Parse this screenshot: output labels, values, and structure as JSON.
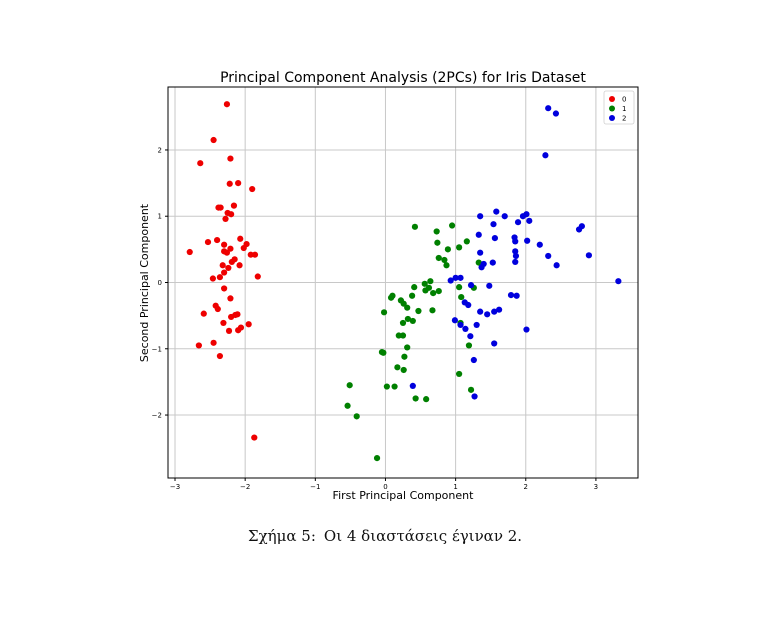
{
  "chart_data": {
    "type": "scatter",
    "title": "Principal Component Analysis (2PCs) for Iris Dataset",
    "xlabel": "First Principal Component",
    "ylabel": "Second Principal Component",
    "xlim": [
      -3.1,
      3.6
    ],
    "ylim": [
      -2.95,
      2.95
    ],
    "xticks": [
      -3,
      -2,
      -1,
      0,
      1,
      2,
      3
    ],
    "xtick_labels": [
      "−3",
      "−2",
      "−1",
      "0",
      "1",
      "2",
      "3"
    ],
    "yticks": [
      -2,
      -1,
      0,
      1,
      2
    ],
    "ytick_labels": [
      "−2",
      "−1",
      "0",
      "1",
      "2"
    ],
    "grid": true,
    "legend": "top-right",
    "series": [
      {
        "name": "0",
        "color": "#ee0000",
        "points": [
          [
            -2.26,
            2.69
          ],
          [
            -2.45,
            2.15
          ],
          [
            -2.21,
            1.87
          ],
          [
            -2.64,
            1.8
          ],
          [
            -2.22,
            1.49
          ],
          [
            -2.1,
            1.5
          ],
          [
            -1.9,
            1.41
          ],
          [
            -2.35,
            1.13
          ],
          [
            -2.38,
            1.13
          ],
          [
            -2.16,
            1.16
          ],
          [
            -2.25,
            1.05
          ],
          [
            -2.2,
            1.03
          ],
          [
            -2.28,
            0.96
          ],
          [
            -2.79,
            0.46
          ],
          [
            -2.53,
            0.61
          ],
          [
            -2.4,
            0.64
          ],
          [
            -2.3,
            0.57
          ],
          [
            -2.07,
            0.66
          ],
          [
            -1.98,
            0.58
          ],
          [
            -2.02,
            0.52
          ],
          [
            -2.21,
            0.51
          ],
          [
            -2.26,
            0.45
          ],
          [
            -2.3,
            0.47
          ],
          [
            -1.92,
            0.42
          ],
          [
            -1.86,
            0.42
          ],
          [
            -2.15,
            0.35
          ],
          [
            -2.19,
            0.31
          ],
          [
            -2.08,
            0.26
          ],
          [
            -2.32,
            0.26
          ],
          [
            -2.24,
            0.22
          ],
          [
            -2.46,
            0.06
          ],
          [
            -2.3,
            0.15
          ],
          [
            -1.82,
            0.09
          ],
          [
            -2.36,
            0.08
          ],
          [
            -2.3,
            -0.09
          ],
          [
            -2.21,
            -0.24
          ],
          [
            -2.42,
            -0.35
          ],
          [
            -2.39,
            -0.4
          ],
          [
            -2.11,
            -0.48
          ],
          [
            -2.14,
            -0.49
          ],
          [
            -2.59,
            -0.47
          ],
          [
            -2.2,
            -0.52
          ],
          [
            -2.31,
            -0.61
          ],
          [
            -1.95,
            -0.63
          ],
          [
            -2.06,
            -0.68
          ],
          [
            -2.1,
            -0.72
          ],
          [
            -2.23,
            -0.73
          ],
          [
            -2.66,
            -0.95
          ],
          [
            -2.45,
            -0.91
          ],
          [
            -2.36,
            -1.11
          ],
          [
            -1.87,
            -2.34
          ]
        ]
      },
      {
        "name": "1",
        "color": "#008000",
        "points": [
          [
            0.95,
            0.86
          ],
          [
            0.42,
            0.84
          ],
          [
            0.73,
            0.77
          ],
          [
            1.16,
            0.62
          ],
          [
            0.74,
            0.6
          ],
          [
            1.05,
            0.53
          ],
          [
            0.89,
            0.5
          ],
          [
            0.84,
            0.34
          ],
          [
            0.76,
            0.37
          ],
          [
            1.33,
            0.3
          ],
          [
            0.87,
            0.26
          ],
          [
            0.64,
            0.02
          ],
          [
            0.56,
            -0.02
          ],
          [
            0.62,
            -0.08
          ],
          [
            0.57,
            -0.12
          ],
          [
            0.41,
            -0.07
          ],
          [
            0.68,
            -0.16
          ],
          [
            0.76,
            -0.13
          ],
          [
            1.05,
            -0.07
          ],
          [
            1.26,
            -0.08
          ],
          [
            1.08,
            -0.22
          ],
          [
            0.22,
            -0.27
          ],
          [
            0.31,
            -0.38
          ],
          [
            0.1,
            -0.2
          ],
          [
            0.08,
            -0.23
          ],
          [
            0.38,
            -0.2
          ],
          [
            0.26,
            -0.32
          ],
          [
            0.47,
            -0.43
          ],
          [
            0.67,
            -0.42
          ],
          [
            0.32,
            -0.55
          ],
          [
            0.39,
            -0.58
          ],
          [
            0.25,
            -0.61
          ],
          [
            -0.02,
            -0.45
          ],
          [
            1.07,
            -0.61
          ],
          [
            0.19,
            -0.8
          ],
          [
            0.25,
            -0.8
          ],
          [
            0.31,
            -0.98
          ],
          [
            0.27,
            -1.12
          ],
          [
            1.19,
            -0.95
          ],
          [
            -0.05,
            -1.05
          ],
          [
            -0.03,
            -1.06
          ],
          [
            0.17,
            -1.28
          ],
          [
            0.26,
            -1.32
          ],
          [
            1.05,
            -1.38
          ],
          [
            -0.51,
            -1.55
          ],
          [
            0.02,
            -1.57
          ],
          [
            0.13,
            -1.57
          ],
          [
            0.43,
            -1.75
          ],
          [
            0.58,
            -1.76
          ],
          [
            1.22,
            -1.62
          ],
          [
            -0.54,
            -1.86
          ],
          [
            -0.41,
            -2.02
          ],
          [
            -0.12,
            -2.65
          ]
        ]
      },
      {
        "name": "2",
        "color": "#0000dd",
        "points": [
          [
            2.32,
            2.63
          ],
          [
            2.43,
            2.55
          ],
          [
            2.28,
            1.92
          ],
          [
            1.35,
            1.0
          ],
          [
            1.58,
            1.07
          ],
          [
            1.7,
            1.0
          ],
          [
            1.96,
            1.0
          ],
          [
            2.01,
            1.03
          ],
          [
            1.89,
            0.91
          ],
          [
            2.05,
            0.93
          ],
          [
            2.76,
            0.8
          ],
          [
            2.8,
            0.85
          ],
          [
            1.54,
            0.88
          ],
          [
            1.33,
            0.72
          ],
          [
            1.56,
            0.67
          ],
          [
            1.84,
            0.68
          ],
          [
            1.85,
            0.62
          ],
          [
            2.02,
            0.63
          ],
          [
            2.2,
            0.57
          ],
          [
            1.85,
            0.47
          ],
          [
            1.35,
            0.45
          ],
          [
            1.86,
            0.4
          ],
          [
            2.32,
            0.4
          ],
          [
            2.9,
            0.41
          ],
          [
            1.53,
            0.3
          ],
          [
            1.4,
            0.28
          ],
          [
            1.85,
            0.31
          ],
          [
            2.44,
            0.26
          ],
          [
            1.37,
            0.23
          ],
          [
            0.93,
            0.03
          ],
          [
            1.0,
            0.07
          ],
          [
            1.07,
            0.07
          ],
          [
            1.22,
            -0.04
          ],
          [
            3.32,
            0.02
          ],
          [
            1.48,
            -0.05
          ],
          [
            1.79,
            -0.19
          ],
          [
            1.87,
            -0.2
          ],
          [
            1.13,
            -0.3
          ],
          [
            1.18,
            -0.34
          ],
          [
            1.35,
            -0.44
          ],
          [
            1.55,
            -0.44
          ],
          [
            1.62,
            -0.41
          ],
          [
            1.45,
            -0.48
          ],
          [
            0.99,
            -0.57
          ],
          [
            1.07,
            -0.64
          ],
          [
            1.14,
            -0.7
          ],
          [
            1.3,
            -0.64
          ],
          [
            2.01,
            -0.71
          ],
          [
            1.21,
            -0.81
          ],
          [
            1.55,
            -0.92
          ],
          [
            1.26,
            -1.17
          ],
          [
            0.39,
            -1.56
          ],
          [
            1.27,
            -1.72
          ]
        ]
      }
    ]
  },
  "caption": {
    "label": "Σχήμα 5:",
    "text": "Οι 4 διαστάσεις έγιναν 2."
  }
}
